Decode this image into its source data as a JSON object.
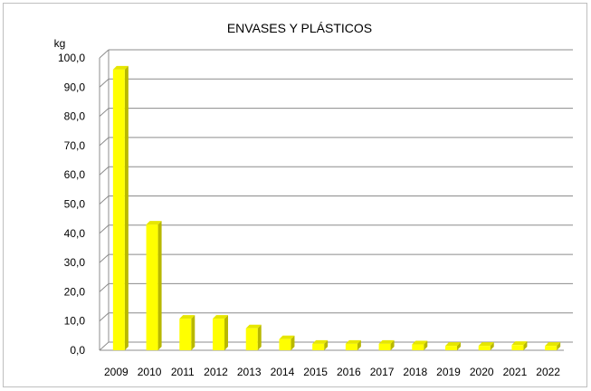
{
  "chart_data": {
    "type": "bar",
    "title": "ENVASES Y PLÁSTICOS",
    "ylabel": "kg",
    "xlabel": "",
    "categories": [
      "2009",
      "2010",
      "2011",
      "2012",
      "2013",
      "2014",
      "2015",
      "2016",
      "2017",
      "2018",
      "2019",
      "2020",
      "2021",
      "2022"
    ],
    "values": [
      96.0,
      43.0,
      10.8,
      10.8,
      7.5,
      3.8,
      2.2,
      2.2,
      2.2,
      2.0,
      1.5,
      1.5,
      1.8,
      1.5
    ],
    "ylim": [
      0,
      100
    ],
    "yticks": [
      "0,0",
      "10,0",
      "20,0",
      "30,0",
      "40,0",
      "50,0",
      "60,0",
      "70,0",
      "80,0",
      "90,0",
      "100,0"
    ],
    "grid": true,
    "colors": {
      "bar_front": "#ffff00",
      "bar_side": "#b8b800",
      "bar_top": "#e6e600",
      "grid": "#8c8c8c"
    }
  }
}
